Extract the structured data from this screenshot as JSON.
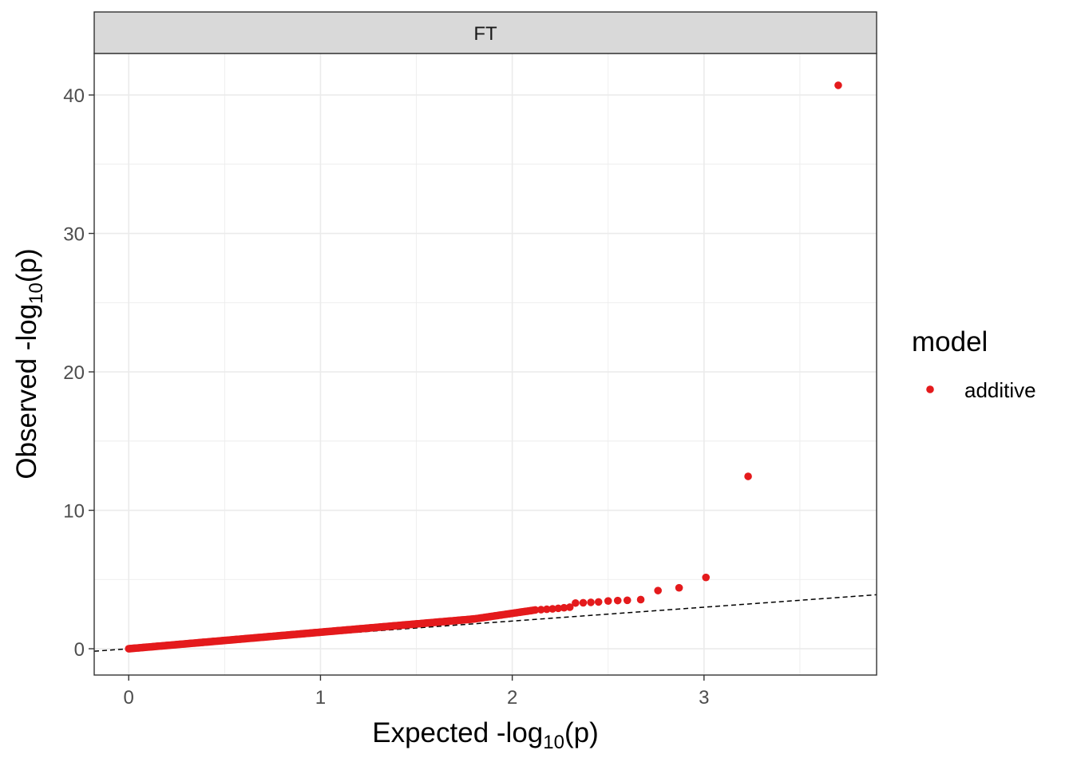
{
  "chart_data": {
    "type": "scatter",
    "facet_label": "FT",
    "xlabel": {
      "pre": "Expected -log",
      "sub": "10",
      "post": "(p)"
    },
    "ylabel": {
      "pre": "Observed -log",
      "sub": "10",
      "post": "(p)"
    },
    "xlim": [
      -0.18,
      3.9
    ],
    "ylim": [
      -1.9,
      43
    ],
    "x_ticks": [
      0,
      1,
      2,
      3
    ],
    "x_tick_labels": [
      "0",
      "1",
      "2",
      "3"
    ],
    "x_minor": [
      0.5,
      1.5,
      2.5,
      3.5
    ],
    "y_ticks": [
      0,
      10,
      20,
      30,
      40
    ],
    "y_tick_labels": [
      "0",
      "10",
      "20",
      "30",
      "40"
    ],
    "y_minor": [
      5,
      15,
      25,
      35
    ],
    "reference_line": {
      "slope": 1,
      "intercept": 0,
      "style": "dashed"
    },
    "legend": {
      "title": "model",
      "entries": [
        "additive"
      ],
      "placement": "right"
    },
    "series": [
      {
        "name": "additive",
        "color": "#e41a1c",
        "bulk": {
          "x_start": 0.0,
          "x_end": 1.8,
          "y_start": 0.0,
          "y_end": 2.15,
          "count": 330
        },
        "bulk2": {
          "x_start": 1.8,
          "x_end": 2.12,
          "y_start": 2.15,
          "y_end": 2.8,
          "count": 40
        },
        "points": [
          [
            2.15,
            2.82
          ],
          [
            2.18,
            2.85
          ],
          [
            2.21,
            2.88
          ],
          [
            2.24,
            2.92
          ],
          [
            2.27,
            2.96
          ],
          [
            2.3,
            3.0
          ],
          [
            2.33,
            3.3
          ],
          [
            2.37,
            3.32
          ],
          [
            2.41,
            3.35
          ],
          [
            2.45,
            3.38
          ],
          [
            2.5,
            3.45
          ],
          [
            2.55,
            3.48
          ],
          [
            2.6,
            3.5
          ],
          [
            2.67,
            3.55
          ],
          [
            2.76,
            4.2
          ],
          [
            2.87,
            4.4
          ],
          [
            3.01,
            5.15
          ],
          [
            3.23,
            12.45
          ],
          [
            3.7,
            40.7
          ]
        ]
      }
    ],
    "background_color": "#ffffff",
    "grid_color": "#ebebeb",
    "strip_fill": "#d9d9d9",
    "border_color": "#333333"
  }
}
